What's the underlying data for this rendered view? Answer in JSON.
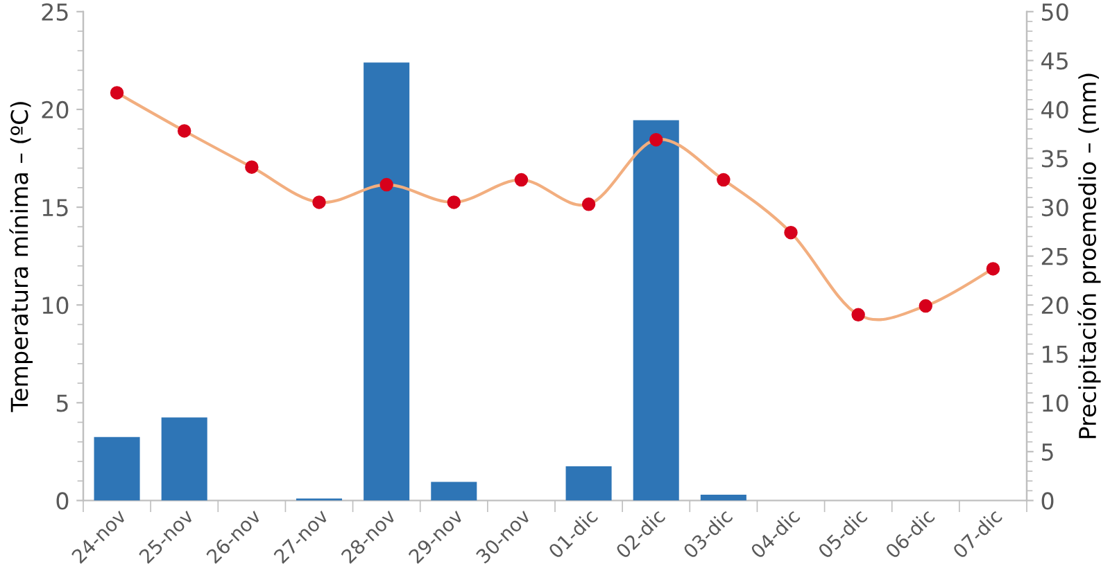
{
  "chart_data": {
    "type": "bar",
    "ylabel": "Temperatura mínima – (ºC)",
    "y2label": "Precipitación proemedio – (mm)",
    "categories": [
      "24-nov",
      "25-nov",
      "26-nov",
      "27-nov",
      "28-nov",
      "29-nov",
      "30-nov",
      "01-dic",
      "02-dic",
      "03-dic",
      "04-dic",
      "05-dic",
      "06-dic",
      "07-dic"
    ],
    "series": [
      {
        "axis": "y2",
        "color": "#2e75b6",
        "values": [
          6.5,
          8.5,
          0,
          0.2,
          44.8,
          1.9,
          0,
          3.5,
          38.9,
          0.6,
          0,
          0,
          0,
          0
        ]
      },
      {
        "type": "line",
        "axis": "y",
        "color": "#f2ae7f",
        "marker": "circle",
        "values": [
          20.85,
          18.9,
          17.05,
          15.25,
          16.15,
          15.25,
          16.4,
          15.15,
          18.45,
          16.4,
          13.7,
          9.5,
          9.95,
          11.85
        ]
      }
    ],
    "ylim": [
      0,
      25
    ],
    "yticks": [
      0,
      5,
      10,
      15,
      20,
      25
    ],
    "y2lim": [
      0,
      50
    ],
    "y2ticks": [
      0,
      5,
      10,
      15,
      20,
      25,
      30,
      35,
      40,
      45,
      50
    ],
    "grid": false,
    "legend": false
  }
}
